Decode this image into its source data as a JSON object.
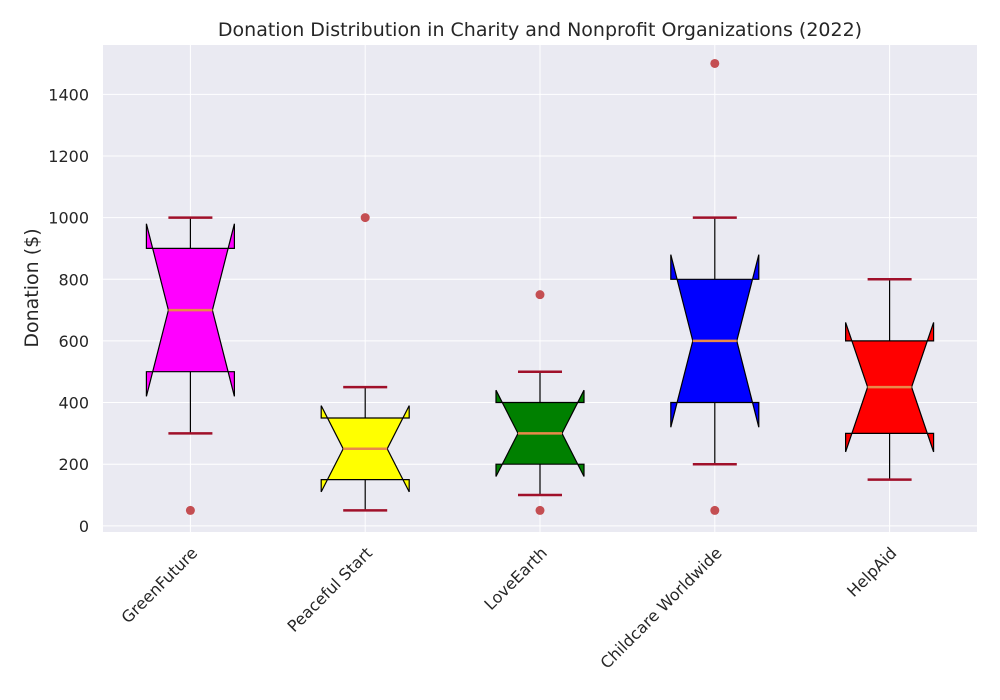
{
  "chart_data": {
    "type": "boxplot",
    "title": "Donation Distribution in Charity and Nonprofit Organizations (2022)",
    "xlabel": "",
    "ylabel": "Donation ($)",
    "ylim": [
      -20,
      1560
    ],
    "yticks": [
      0,
      200,
      400,
      600,
      800,
      1000,
      1200,
      1400
    ],
    "grid": true,
    "notched": true,
    "background_color": "#eaeaf2",
    "whisker_cap_color": "#a0102a",
    "median_color": "#e8894a",
    "outlier_color": "#c44e52",
    "categories": [
      "GreenFuture",
      "Peaceful Start",
      "LoveEarth",
      "Childcare Worldwide",
      "HelpAid"
    ],
    "boxes": [
      {
        "name": "GreenFuture",
        "min": 300,
        "q1": 500,
        "median": 700,
        "q3": 900,
        "max": 1000,
        "notch_low": 420,
        "notch_high": 980,
        "outliers": [
          50
        ],
        "color": "#ff00ff"
      },
      {
        "name": "Peaceful Start",
        "min": 50,
        "q1": 150,
        "median": 250,
        "q3": 350,
        "max": 450,
        "notch_low": 110,
        "notch_high": 390,
        "outliers": [
          1000
        ],
        "color": "#ffff00"
      },
      {
        "name": "LoveEarth",
        "min": 100,
        "q1": 200,
        "median": 300,
        "q3": 400,
        "max": 500,
        "notch_low": 160,
        "notch_high": 440,
        "outliers": [
          50,
          750
        ],
        "color": "#008000"
      },
      {
        "name": "Childcare Worldwide",
        "min": 200,
        "q1": 400,
        "median": 600,
        "q3": 800,
        "max": 1000,
        "notch_low": 320,
        "notch_high": 880,
        "outliers": [
          50,
          1500
        ],
        "color": "#0000ff"
      },
      {
        "name": "HelpAid",
        "min": 150,
        "q1": 300,
        "median": 450,
        "q3": 600,
        "max": 800,
        "notch_low": 240,
        "notch_high": 660,
        "outliers": [],
        "color": "#ff0000"
      }
    ]
  }
}
